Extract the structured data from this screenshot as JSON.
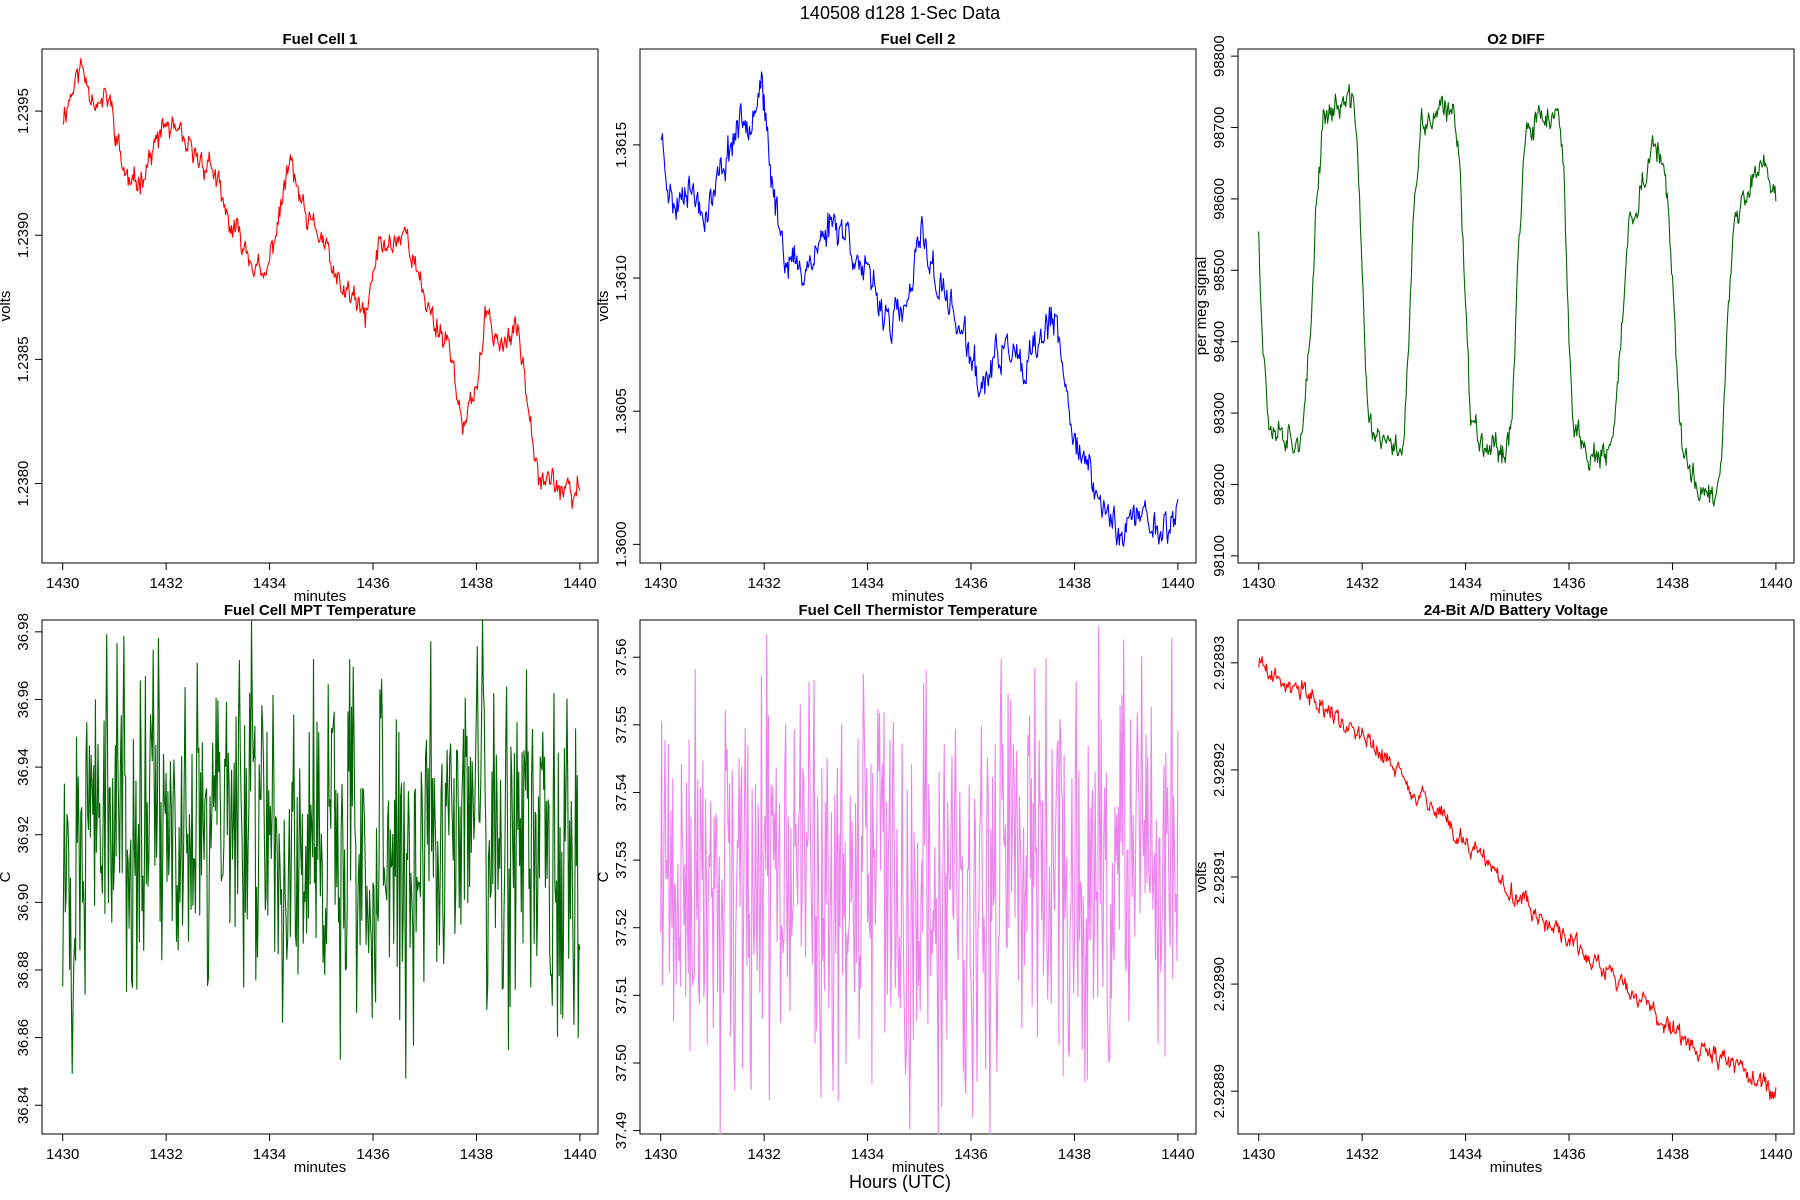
{
  "title": "140508   d128   1-Sec Data",
  "xlabel_outer": "Hours (UTC)",
  "charts": [
    {
      "type": "line",
      "title": "Fuel Cell 1",
      "xlabel": "minutes",
      "ylabel": "volts",
      "color": "#ff0000",
      "xlim": [
        1429.6,
        1440.35
      ],
      "ylim": [
        1.23768,
        1.23975
      ],
      "xticks": [
        1430,
        1432,
        1434,
        1436,
        1438,
        1440
      ],
      "yticks": [
        1.238,
        1.2385,
        1.239,
        1.2395
      ],
      "ytick_labels": [
        "1.2380",
        "1.2385",
        "1.2390",
        "1.2395"
      ],
      "noise": 4e-05,
      "spikes": 0,
      "seed": 11,
      "anchors": [
        [
          1430.0,
          1.23948
        ],
        [
          1430.35,
          1.23968
        ],
        [
          1430.7,
          1.23952
        ],
        [
          1430.9,
          1.23955
        ],
        [
          1431.15,
          1.23928
        ],
        [
          1431.35,
          1.23918
        ],
        [
          1431.7,
          1.23932
        ],
        [
          1432.0,
          1.23945
        ],
        [
          1432.5,
          1.23932
        ],
        [
          1432.9,
          1.23928
        ],
        [
          1433.05,
          1.23915
        ],
        [
          1433.2,
          1.23905
        ],
        [
          1433.6,
          1.23893
        ],
        [
          1433.9,
          1.2388
        ],
        [
          1434.15,
          1.23905
        ],
        [
          1434.4,
          1.2393
        ],
        [
          1434.7,
          1.23905
        ],
        [
          1435.0,
          1.239
        ],
        [
          1435.3,
          1.2388
        ],
        [
          1435.6,
          1.23875
        ],
        [
          1435.85,
          1.23866
        ],
        [
          1436.1,
          1.23895
        ],
        [
          1436.35,
          1.23897
        ],
        [
          1436.65,
          1.23902
        ],
        [
          1436.9,
          1.2388
        ],
        [
          1437.2,
          1.23865
        ],
        [
          1437.5,
          1.23855
        ],
        [
          1437.75,
          1.2382
        ],
        [
          1438.0,
          1.2384
        ],
        [
          1438.2,
          1.23868
        ],
        [
          1438.5,
          1.23855
        ],
        [
          1438.8,
          1.23862
        ],
        [
          1439.0,
          1.23835
        ],
        [
          1439.2,
          1.23805
        ],
        [
          1439.55,
          1.238
        ],
        [
          1439.85,
          1.23793
        ],
        [
          1440.0,
          1.238
        ]
      ]
    },
    {
      "type": "line",
      "title": "Fuel Cell 2",
      "xlabel": "minutes",
      "ylabel": "volts",
      "color": "#0000ff",
      "xlim": [
        1429.6,
        1440.35
      ],
      "ylim": [
        1.35993,
        1.36186
      ],
      "xticks": [
        1430,
        1432,
        1434,
        1436,
        1438,
        1440
      ],
      "yticks": [
        1.36,
        1.3605,
        1.361,
        1.3615
      ],
      "ytick_labels": [
        "1.3600",
        "1.3605",
        "1.3610",
        "1.3615"
      ],
      "noise": 5e-05,
      "spikes": 0,
      "seed": 23,
      "anchors": [
        [
          1430.0,
          1.36155
        ],
        [
          1430.25,
          1.36125
        ],
        [
          1430.5,
          1.36138
        ],
        [
          1430.8,
          1.36125
        ],
        [
          1431.0,
          1.3613
        ],
        [
          1431.25,
          1.36145
        ],
        [
          1431.5,
          1.36158
        ],
        [
          1431.75,
          1.36162
        ],
        [
          1431.95,
          1.36175
        ],
        [
          1432.1,
          1.3614
        ],
        [
          1432.4,
          1.3611
        ],
        [
          1432.7,
          1.36102
        ],
        [
          1433.0,
          1.3611
        ],
        [
          1433.3,
          1.36122
        ],
        [
          1433.6,
          1.36118
        ],
        [
          1433.9,
          1.36102
        ],
        [
          1434.2,
          1.36092
        ],
        [
          1434.5,
          1.36083
        ],
        [
          1434.8,
          1.3609
        ],
        [
          1435.05,
          1.36118
        ],
        [
          1435.3,
          1.361
        ],
        [
          1435.6,
          1.3609
        ],
        [
          1435.9,
          1.36075
        ],
        [
          1436.2,
          1.36058
        ],
        [
          1436.5,
          1.3607
        ],
        [
          1436.8,
          1.36075
        ],
        [
          1437.0,
          1.3606
        ],
        [
          1437.3,
          1.36075
        ],
        [
          1437.6,
          1.36085
        ],
        [
          1437.9,
          1.3605
        ],
        [
          1438.2,
          1.3603
        ],
        [
          1438.5,
          1.36015
        ],
        [
          1438.9,
          1.36005
        ],
        [
          1439.3,
          1.36012
        ],
        [
          1439.7,
          1.36005
        ],
        [
          1440.0,
          1.36012
        ]
      ]
    },
    {
      "type": "line",
      "title": "O2 DIFF",
      "xlabel": "minutes",
      "ylabel": "per meg signal",
      "color": "#006400",
      "xlim": [
        1429.6,
        1440.35
      ],
      "ylim": [
        98090,
        98810
      ],
      "xticks": [
        1430,
        1432,
        1434,
        1436,
        1438,
        1440
      ],
      "yticks": [
        98100,
        98200,
        98300,
        98400,
        98500,
        98600,
        98700,
        98800
      ],
      "ytick_labels": [
        "98100",
        "98200",
        "98300",
        "98400",
        "98500",
        "98600",
        "98700",
        "98800"
      ],
      "noise": 15,
      "spikes": 0,
      "seed": 37,
      "anchors": [
        [
          1430.0,
          98560
        ],
        [
          1430.08,
          98400
        ],
        [
          1430.2,
          98290
        ],
        [
          1430.6,
          98270
        ],
        [
          1430.85,
          98265
        ],
        [
          1431.0,
          98400
        ],
        [
          1431.1,
          98580
        ],
        [
          1431.25,
          98720
        ],
        [
          1431.6,
          98730
        ],
        [
          1431.8,
          98735
        ],
        [
          1431.9,
          98700
        ],
        [
          1432.0,
          98500
        ],
        [
          1432.1,
          98300
        ],
        [
          1432.3,
          98260
        ],
        [
          1432.6,
          98250
        ],
        [
          1432.8,
          98260
        ],
        [
          1432.9,
          98400
        ],
        [
          1433.0,
          98580
        ],
        [
          1433.15,
          98700
        ],
        [
          1433.5,
          98720
        ],
        [
          1433.8,
          98715
        ],
        [
          1433.9,
          98650
        ],
        [
          1434.0,
          98450
        ],
        [
          1434.1,
          98290
        ],
        [
          1434.4,
          98260
        ],
        [
          1434.8,
          98250
        ],
        [
          1434.9,
          98300
        ],
        [
          1435.0,
          98500
        ],
        [
          1435.15,
          98680
        ],
        [
          1435.5,
          98720
        ],
        [
          1435.8,
          98710
        ],
        [
          1435.9,
          98620
        ],
        [
          1436.0,
          98400
        ],
        [
          1436.1,
          98280
        ],
        [
          1436.4,
          98240
        ],
        [
          1436.7,
          98230
        ],
        [
          1436.9,
          98280
        ],
        [
          1437.0,
          98400
        ],
        [
          1437.15,
          98560
        ],
        [
          1437.4,
          98620
        ],
        [
          1437.7,
          98680
        ],
        [
          1437.9,
          98600
        ],
        [
          1438.05,
          98400
        ],
        [
          1438.2,
          98240
        ],
        [
          1438.5,
          98200
        ],
        [
          1438.8,
          98180
        ],
        [
          1438.95,
          98250
        ],
        [
          1439.05,
          98420
        ],
        [
          1439.2,
          98560
        ],
        [
          1439.5,
          98620
        ],
        [
          1439.8,
          98650
        ],
        [
          1440.0,
          98600
        ]
      ]
    },
    {
      "type": "line",
      "title": "Fuel Cell MPT Temperature",
      "xlabel": "minutes",
      "ylabel": "C",
      "color": "#006400",
      "xlim": [
        1429.6,
        1440.35
      ],
      "ylim": [
        36.8315,
        36.9835
      ],
      "xticks": [
        1430,
        1432,
        1434,
        1436,
        1438,
        1440
      ],
      "yticks": [
        36.84,
        36.86,
        36.88,
        36.9,
        36.92,
        36.94,
        36.96,
        36.98
      ],
      "ytick_labels": [
        "36.84",
        "36.86",
        "36.88",
        "36.90",
        "36.92",
        "36.94",
        "36.96",
        "36.98"
      ],
      "noise": 0.018,
      "spikes": 0.04,
      "seed": 53,
      "anchors": [
        [
          1430.0,
          36.922
        ],
        [
          1431.0,
          36.92
        ],
        [
          1432.0,
          36.925
        ],
        [
          1433.0,
          36.928
        ],
        [
          1434.0,
          36.925
        ],
        [
          1435.0,
          36.915
        ],
        [
          1436.0,
          36.905
        ],
        [
          1436.8,
          36.91
        ],
        [
          1437.5,
          36.925
        ],
        [
          1438.3,
          36.925
        ],
        [
          1439.0,
          36.918
        ],
        [
          1440.0,
          36.918
        ]
      ]
    },
    {
      "type": "line",
      "title": "Fuel Cell Thermistor Temperature",
      "xlabel": "minutes",
      "ylabel": "C",
      "color": "#ee82ee",
      "xlim": [
        1429.6,
        1440.35
      ],
      "ylim": [
        37.4895,
        37.5655
      ],
      "xticks": [
        1430,
        1432,
        1434,
        1436,
        1438,
        1440
      ],
      "yticks": [
        37.49,
        37.5,
        37.51,
        37.52,
        37.53,
        37.54,
        37.55,
        37.56
      ],
      "ytick_labels": [
        "37.49",
        "37.50",
        "37.51",
        "37.52",
        "37.53",
        "37.54",
        "37.55",
        "37.56"
      ],
      "noise": 0.01,
      "spikes": 0.025,
      "seed": 71,
      "anchors": [
        [
          1430.0,
          37.524
        ],
        [
          1432.0,
          37.524
        ],
        [
          1434.0,
          37.525
        ],
        [
          1436.0,
          37.526
        ],
        [
          1438.0,
          37.527
        ],
        [
          1440.0,
          37.528
        ]
      ]
    },
    {
      "type": "line",
      "title": "24-Bit A/D Battery Voltage",
      "xlabel": "minutes",
      "ylabel": "volts",
      "color": "#ff0000",
      "xlim": [
        1429.6,
        1440.35
      ],
      "ylim": [
        2.928886,
        2.928934
      ],
      "xticks": [
        1430,
        1432,
        1434,
        1436,
        1438,
        1440
      ],
      "yticks": [
        2.92889,
        2.9289,
        2.92891,
        2.92892,
        2.92893
      ],
      "ytick_labels": [
        "2.92889",
        "2.92890",
        "2.92891",
        "2.92892",
        "2.92893"
      ],
      "noise": 7e-07,
      "spikes": 0,
      "seed": 89,
      "anchors": [
        [
          1430.0,
          2.92893
        ],
        [
          1430.5,
          2.928928
        ],
        [
          1431.0,
          2.928927
        ],
        [
          1431.5,
          2.928925
        ],
        [
          1432.0,
          2.928923
        ],
        [
          1432.5,
          2.928921
        ],
        [
          1433.0,
          2.928918
        ],
        [
          1433.5,
          2.928916
        ],
        [
          1434.0,
          2.928913
        ],
        [
          1434.5,
          2.928911
        ],
        [
          1435.0,
          2.928908
        ],
        [
          1435.5,
          2.928906
        ],
        [
          1436.0,
          2.928904
        ],
        [
          1436.5,
          2.928902
        ],
        [
          1437.0,
          2.9289
        ],
        [
          1437.5,
          2.928898
        ],
        [
          1438.0,
          2.928896
        ],
        [
          1438.5,
          2.928894
        ],
        [
          1439.0,
          2.928893
        ],
        [
          1439.5,
          2.928891
        ],
        [
          1440.0,
          2.92889
        ]
      ]
    }
  ]
}
